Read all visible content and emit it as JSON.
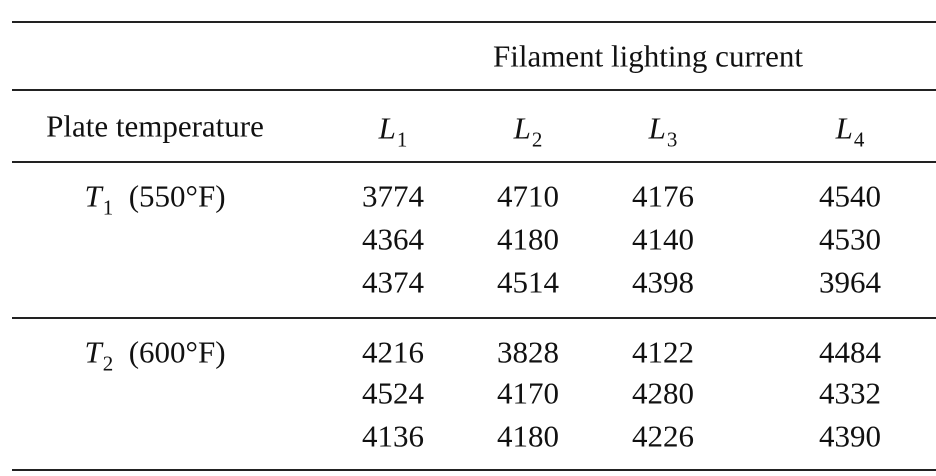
{
  "table": {
    "spanner": "Filament lighting current",
    "corner": "Plate temperature",
    "columns": [
      {
        "symbol": "L",
        "sub": "1"
      },
      {
        "symbol": "L",
        "sub": "2"
      },
      {
        "symbol": "L",
        "sub": "3"
      },
      {
        "symbol": "L",
        "sub": "4"
      }
    ],
    "groups": [
      {
        "label": {
          "symbol": "T",
          "sub": "1",
          "note": "(550°F)"
        },
        "rows": [
          [
            3774,
            4710,
            4176,
            4540
          ],
          [
            4364,
            4180,
            4140,
            4530
          ],
          [
            4374,
            4514,
            4398,
            3964
          ]
        ]
      },
      {
        "label": {
          "symbol": "T",
          "sub": "2",
          "note": "(600°F)"
        },
        "rows": [
          [
            4216,
            3828,
            4122,
            4484
          ],
          [
            4524,
            4170,
            4280,
            4332
          ],
          [
            4136,
            4180,
            4226,
            4390
          ]
        ]
      }
    ]
  }
}
